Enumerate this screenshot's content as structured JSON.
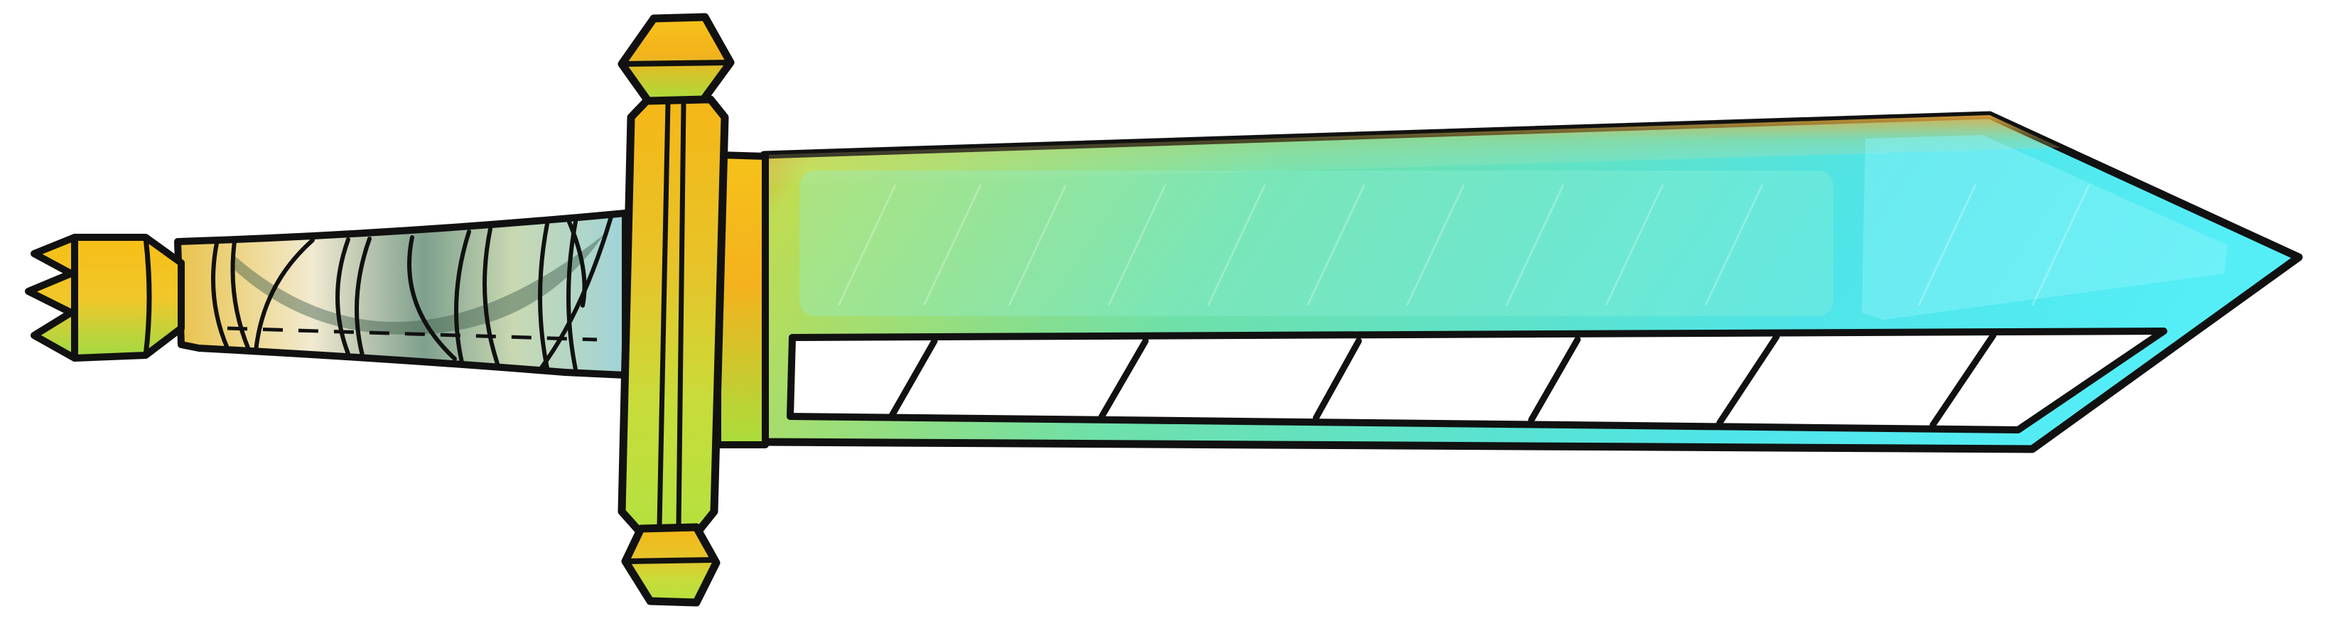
{
  "image": {
    "subject": "sword-icon",
    "colors": {
      "outline": "#111111",
      "gold": "#f5c21b",
      "gold_dark": "#d7961a",
      "lime": "#b9e63c",
      "blade_cyan": "#4fe7f0",
      "blade_teal": "#7fd9c8",
      "blade_edge": "#ffffff",
      "grip_light": "#f2efc4",
      "grip_shadow": "#445e4f",
      "background": "#ffffff"
    }
  }
}
